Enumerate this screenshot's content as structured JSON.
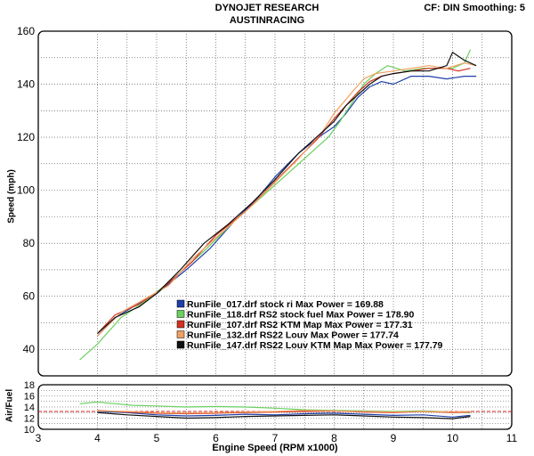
{
  "header": {
    "title": "DYNOJET RESEARCH",
    "subtitle": "AUSTINRACING",
    "info": "CF: DIN  Smoothing: 5"
  },
  "chart_data": [
    {
      "type": "line",
      "panel": "top",
      "ylabel": "Speed (mph)",
      "xlim": [
        3,
        11
      ],
      "ylim": [
        30,
        160
      ],
      "yticks": [
        40,
        60,
        80,
        100,
        120,
        140,
        160
      ],
      "grid": true,
      "legend_placement": "bottom-right",
      "series": [
        {
          "name": "RunFile_017.drf stock ri Max Power = 169.88",
          "color": "#1f3fa8",
          "x": [
            4.0,
            4.3,
            4.6,
            5.0,
            5.5,
            5.9,
            6.3,
            6.7,
            7.0,
            7.4,
            7.8,
            8.0,
            8.2,
            8.4,
            8.6,
            8.8,
            9.0,
            9.3,
            9.6,
            9.9,
            10.2,
            10.4
          ],
          "y": [
            45,
            52,
            56,
            61,
            70,
            78,
            88,
            97,
            105,
            114,
            121,
            124,
            129,
            135,
            139,
            141,
            140,
            143,
            143,
            142,
            143,
            143
          ]
        },
        {
          "name": "RunFile_118.drf RS2 stock fuel Max Power = 178.90",
          "color": "#6ad060",
          "x": [
            3.7,
            4.0,
            4.4,
            4.8,
            5.3,
            5.8,
            6.3,
            6.8,
            7.2,
            7.6,
            7.9,
            8.1,
            8.3,
            8.5,
            8.7,
            8.9,
            9.2,
            9.5,
            9.8,
            10.0,
            10.2,
            10.3
          ],
          "y": [
            36,
            42,
            52,
            58,
            67,
            77,
            88,
            98,
            106,
            114,
            120,
            126,
            133,
            140,
            144,
            147,
            145,
            146,
            146,
            146,
            148,
            153
          ]
        },
        {
          "name": "RunFile_107.drf RS2 KTM Map Max Power = 177.31",
          "color": "#d03020",
          "x": [
            4.0,
            4.3,
            4.7,
            5.1,
            5.6,
            6.0,
            6.5,
            6.9,
            7.3,
            7.7,
            8.0,
            8.2,
            8.4,
            8.6,
            8.8,
            9.0,
            9.3,
            9.6,
            9.9,
            10.1,
            10.3
          ],
          "y": [
            46,
            53,
            57,
            63,
            73,
            83,
            92,
            101,
            110,
            119,
            127,
            132,
            137,
            141,
            143,
            144,
            145,
            146,
            146,
            145,
            146
          ]
        },
        {
          "name": "RunFile_132.drf RS22 Louv Max Power = 177.74",
          "color": "#f0a060",
          "x": [
            4.0,
            4.4,
            4.8,
            5.2,
            5.6,
            6.1,
            6.6,
            7.0,
            7.4,
            7.8,
            8.0,
            8.3,
            8.5,
            8.7,
            9.0,
            9.3,
            9.6,
            9.9,
            10.2,
            10.4
          ],
          "y": [
            45,
            54,
            59,
            64,
            74,
            84,
            94,
            103,
            112,
            122,
            129,
            137,
            142,
            144,
            145,
            146,
            147,
            146,
            148,
            147
          ]
        },
        {
          "name": "RunFile_147.drf RS22 Louv KTM Map Max Power = 177.79",
          "color": "#101010",
          "x": [
            4.0,
            4.3,
            4.7,
            5.0,
            5.4,
            5.8,
            6.2,
            6.6,
            7.0,
            7.4,
            7.7,
            8.0,
            8.2,
            8.4,
            8.6,
            8.8,
            9.0,
            9.3,
            9.6,
            9.9,
            10.0,
            10.2,
            10.4
          ],
          "y": [
            46,
            52,
            56,
            61,
            70,
            80,
            87,
            95,
            104,
            114,
            120,
            126,
            132,
            136,
            140,
            143,
            144,
            145,
            145,
            147,
            152,
            149,
            147
          ]
        }
      ]
    },
    {
      "type": "line",
      "panel": "bottom",
      "ylabel": "Air/Fuel",
      "xlabel": "Engine Speed (RPM x1000)",
      "xlim": [
        3,
        11
      ],
      "ylim": [
        10,
        18
      ],
      "yticks": [
        10,
        12,
        14,
        16,
        18
      ],
      "xticks": [
        3,
        4,
        5,
        6,
        7,
        8,
        9,
        10,
        11
      ],
      "reference_line": {
        "value": 13.2,
        "color": "#d02020"
      },
      "grid": true,
      "series": [
        {
          "name": "RunFile_017.drf",
          "color": "#1f3fa8",
          "x": [
            4.0,
            4.5,
            5.0,
            5.5,
            6.0,
            6.5,
            7.0,
            7.5,
            8.0,
            8.5,
            9.0,
            9.5,
            10.0,
            10.3
          ],
          "y": [
            13.2,
            13.0,
            12.6,
            12.4,
            12.5,
            12.7,
            12.6,
            12.8,
            12.9,
            12.7,
            12.5,
            12.6,
            12.2,
            12.5
          ]
        },
        {
          "name": "RunFile_118.drf",
          "color": "#6ad060",
          "x": [
            3.7,
            4.0,
            4.3,
            4.6,
            5.0,
            5.5,
            6.0,
            6.5,
            7.0,
            7.5,
            8.0,
            8.5,
            9.0,
            9.5,
            10.0,
            10.3
          ],
          "y": [
            14.6,
            14.9,
            14.6,
            14.3,
            14.2,
            14.0,
            14.1,
            14.0,
            13.8,
            13.5,
            13.4,
            13.3,
            13.2,
            13.3,
            13.1,
            13.0
          ]
        },
        {
          "name": "RunFile_107.drf",
          "color": "#d03020",
          "x": [
            4.0,
            4.5,
            5.0,
            5.5,
            6.0,
            6.5,
            7.0,
            7.5,
            8.0,
            8.5,
            9.0,
            9.5,
            10.0,
            10.3
          ],
          "y": [
            13.4,
            13.1,
            12.9,
            12.8,
            12.9,
            13.0,
            13.1,
            13.2,
            13.3,
            13.1,
            13.0,
            13.2,
            13.0,
            13.1
          ]
        },
        {
          "name": "RunFile_132.drf",
          "color": "#f0a060",
          "x": [
            4.0,
            4.5,
            5.0,
            5.5,
            6.0,
            6.5,
            7.0,
            7.5,
            8.0,
            8.5,
            9.0,
            9.5,
            10.0,
            10.3
          ],
          "y": [
            13.3,
            13.2,
            13.0,
            12.9,
            13.0,
            13.1,
            13.2,
            13.4,
            13.3,
            13.2,
            13.1,
            13.2,
            13.1,
            13.2
          ]
        },
        {
          "name": "RunFile_147.drf",
          "color": "#101010",
          "x": [
            4.0,
            4.5,
            5.0,
            5.5,
            6.0,
            6.5,
            7.0,
            7.5,
            8.0,
            8.5,
            9.0,
            9.5,
            10.0,
            10.3
          ],
          "y": [
            13.0,
            12.6,
            12.3,
            12.0,
            12.1,
            12.3,
            12.4,
            12.5,
            12.6,
            12.4,
            12.2,
            12.1,
            11.9,
            12.3
          ]
        }
      ]
    }
  ]
}
